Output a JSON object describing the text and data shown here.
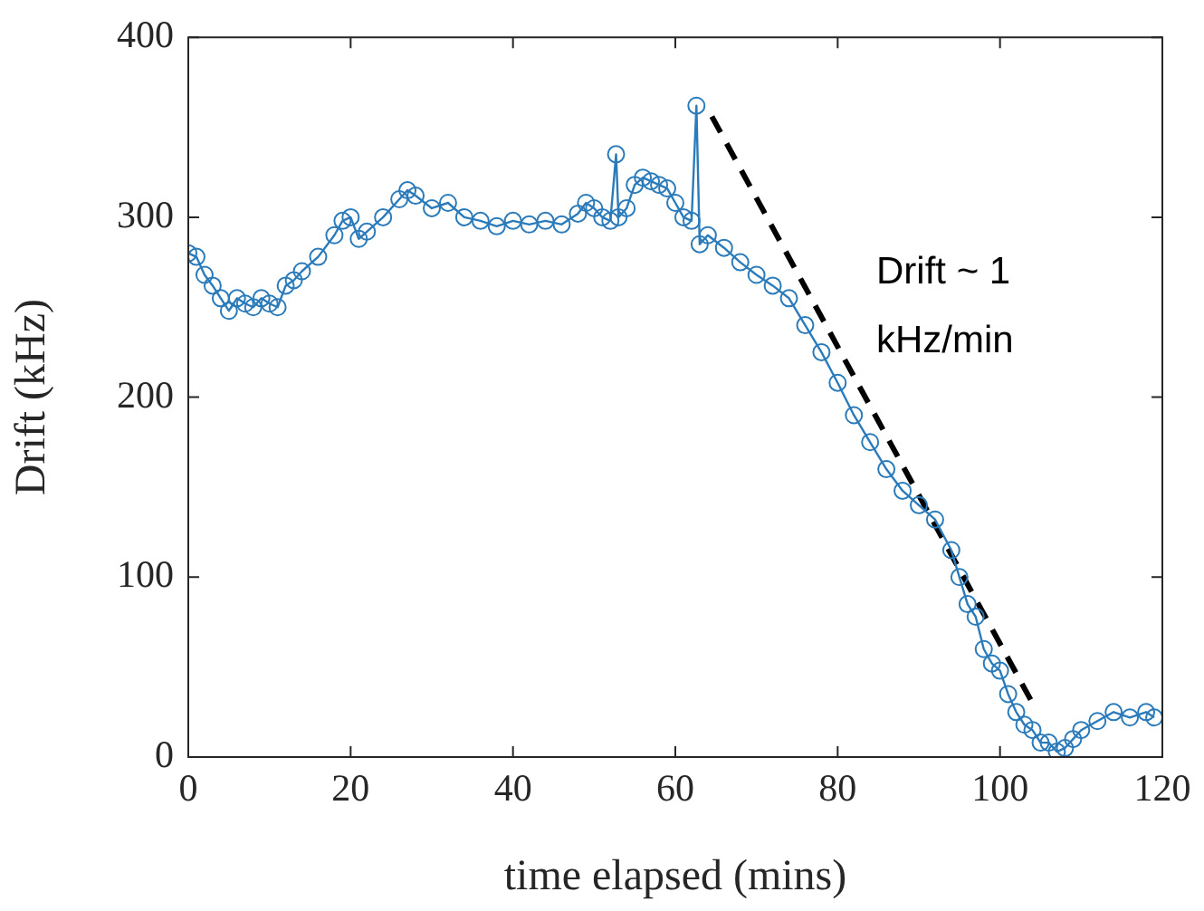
{
  "chart_data": {
    "type": "line",
    "xlabel": "time elapsed (mins)",
    "ylabel": "Drift (kHz)",
    "xlim": [
      0,
      120
    ],
    "xticks": [
      0,
      20,
      40,
      60,
      80,
      100,
      120
    ],
    "ylim": [
      0,
      400
    ],
    "yticks": [
      0,
      100,
      200,
      300,
      400
    ],
    "grid": false,
    "marker": "circle",
    "line_style": "solid",
    "series": [
      {
        "color": "#2b7bba",
        "x": [
          0,
          1,
          2,
          3,
          4,
          5,
          6,
          7,
          8,
          9,
          10,
          11,
          12,
          13,
          14,
          16,
          18,
          19,
          20,
          21,
          22,
          24,
          26,
          27,
          28,
          30,
          32,
          34,
          36,
          38,
          40,
          42,
          44,
          46,
          48,
          49,
          50,
          51,
          52,
          52.7,
          53,
          54,
          55,
          56,
          57,
          58,
          59,
          60,
          61,
          62,
          62.6,
          63,
          64,
          66,
          68,
          70,
          72,
          74,
          76,
          78,
          80,
          82,
          84,
          86,
          88,
          90,
          92,
          94,
          95,
          96,
          97,
          98,
          99,
          100,
          101,
          102,
          103,
          104,
          105,
          106,
          107,
          108,
          109,
          110,
          112,
          114,
          116,
          118,
          119
        ],
        "values": [
          280,
          278,
          268,
          262,
          255,
          248,
          255,
          252,
          250,
          255,
          252,
          250,
          262,
          265,
          270,
          278,
          290,
          298,
          300,
          288,
          292,
          300,
          310,
          315,
          312,
          305,
          308,
          300,
          298,
          295,
          298,
          296,
          298,
          296,
          302,
          308,
          305,
          300,
          298,
          335,
          300,
          305,
          318,
          322,
          320,
          318,
          316,
          308,
          300,
          298,
          362,
          285,
          290,
          283,
          275,
          268,
          262,
          255,
          240,
          225,
          208,
          190,
          175,
          160,
          148,
          140,
          132,
          115,
          100,
          85,
          78,
          60,
          52,
          48,
          35,
          25,
          18,
          15,
          8,
          8,
          3,
          5,
          10,
          15,
          20,
          25,
          22,
          25,
          22
        ]
      },
      {
        "type": "line",
        "color": "#000000",
        "line_style": "dashed",
        "marker": "none",
        "x": [
          64.5,
          104
        ],
        "values": [
          356,
          30
        ]
      }
    ],
    "annotations": [
      "Drift ~ 1 kHz/min"
    ]
  }
}
